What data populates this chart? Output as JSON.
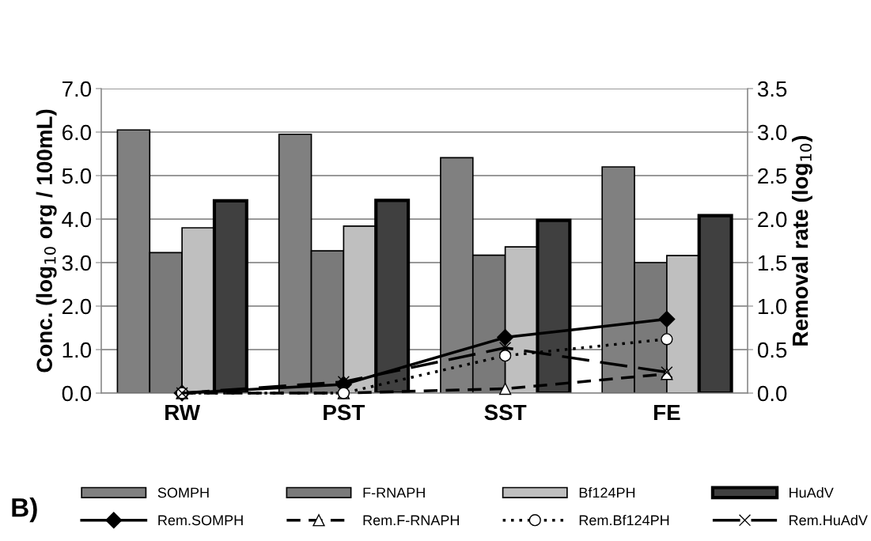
{
  "chart_data": {
    "type": "bar",
    "categories": [
      "RW",
      "PST",
      "SST",
      "FE"
    ],
    "ylabel": "Conc. (log$_{10}$ org / 100mL)",
    "y2label": "Removal rate (log$_{10}$)",
    "ylim": [
      0,
      7
    ],
    "yticks": [
      {
        "value": 0,
        "label": "0.0"
      },
      {
        "value": 1,
        "label": "1.0"
      },
      {
        "value": 2,
        "label": "2.0"
      },
      {
        "value": 3,
        "label": "3.0"
      },
      {
        "value": 4,
        "label": "4.0"
      },
      {
        "value": 5,
        "label": "5.0"
      },
      {
        "value": 6,
        "label": "6.0"
      },
      {
        "value": 7,
        "label": "7.0"
      }
    ],
    "y2lim": [
      0,
      3.5
    ],
    "y2ticks": [
      {
        "value": 0,
        "label": "0.0"
      },
      {
        "value": 0.5,
        "label": "0.5"
      },
      {
        "value": 1,
        "label": "1.0"
      },
      {
        "value": 1.5,
        "label": "1.5"
      },
      {
        "value": 2,
        "label": "2.0"
      },
      {
        "value": 2.5,
        "label": "2.5"
      },
      {
        "value": 3,
        "label": "3.0"
      },
      {
        "value": 3.5,
        "label": "3.5"
      }
    ],
    "grid": "y",
    "legend": "bottom",
    "annotations": [
      "B)"
    ],
    "series": [
      {
        "name": "SOMPH",
        "color": "#808080",
        "values": [
          6.05,
          5.95,
          5.41,
          5.2
        ]
      },
      {
        "name": "F-RNAPH",
        "color": "#7a7a7a",
        "values": [
          3.23,
          3.27,
          3.17,
          3.0
        ]
      },
      {
        "name": "Bf124PH",
        "color": "#bfbfbf",
        "values": [
          3.8,
          3.84,
          3.36,
          3.16
        ]
      },
      {
        "name": "HuAdV",
        "color": "#404040",
        "values": [
          4.42,
          4.43,
          3.97,
          4.08
        ]
      },
      {
        "name": "Rem.SOMPH",
        "type": "line",
        "axis": "y2",
        "color": "#000000",
        "marker": "diamond",
        "line_style": "solid",
        "values": [
          0,
          0.1,
          0.64,
          0.85
        ]
      },
      {
        "name": "Rem.F-RNAPH",
        "type": "line",
        "axis": "y2",
        "color": "#000000",
        "marker": "triangle",
        "line_style": "dashed",
        "values": [
          0,
          0.0,
          0.05,
          0.22
        ]
      },
      {
        "name": "Rem.Bf124PH",
        "type": "line",
        "axis": "y2",
        "color": "#000000",
        "marker": "circle",
        "line_style": "dotted",
        "values": [
          0,
          0.0,
          0.43,
          0.62
        ]
      },
      {
        "name": "Rem.HuAdV",
        "type": "line",
        "axis": "y2",
        "color": "#000000",
        "marker": "cross",
        "line_style": "longdash",
        "values": [
          0,
          0.13,
          0.52,
          0.24
        ]
      }
    ]
  }
}
